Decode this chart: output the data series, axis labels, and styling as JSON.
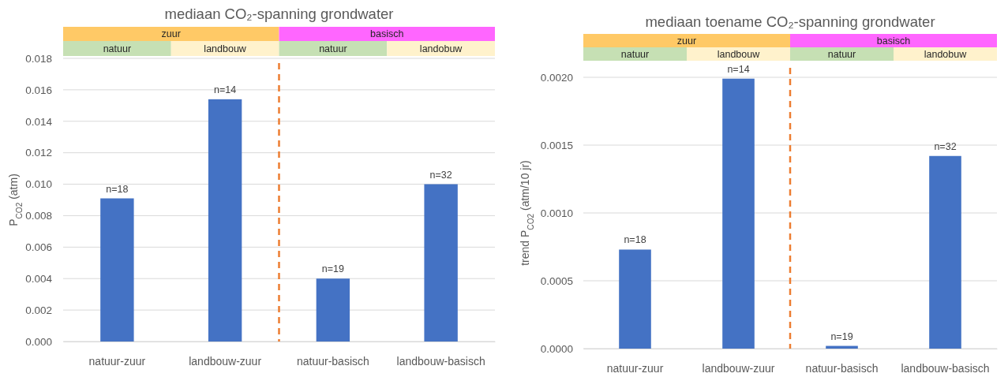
{
  "chart_data": [
    {
      "type": "bar",
      "title": "mediaan CO₂-spanning grondwater",
      "ylabel": "P$_{CO2}$ (atm)",
      "categories": [
        "natuur-zuur",
        "landbouw-zuur",
        "natuur-basisch",
        "landbouw-basisch"
      ],
      "values": [
        0.0091,
        0.0154,
        0.004,
        0.01
      ],
      "color": "#4472c4",
      "ylim": [
        0,
        0.018
      ],
      "yticks": [
        {
          "value": 0,
          "label": "0.000"
        },
        0.002,
        0.004,
        0.006,
        0.008,
        {
          "value": 0.01,
          "label": "0.010"
        },
        0.012,
        0.014,
        0.016,
        0.018
      ],
      "grid": "y",
      "annotations": [
        "zuur",
        "basisch",
        "natuur",
        "landbouw",
        "natuur",
        "landobuw",
        {
          "text": "n=18",
          "x": "natuur-zuur",
          "y": 0.0091
        },
        {
          "text": "n=14",
          "x": "landbouw-zuur",
          "y": 0.0154
        },
        {
          "text": "n=19",
          "x": "natuur-basisch",
          "y": 0.004
        },
        {
          "text": "n=32",
          "x": "landbouw-basisch",
          "y": 0.01
        }
      ]
    },
    {
      "type": "bar",
      "title": "mediaan toename CO₂-spanning grondwater",
      "ylabel": "trend P$_{CO2}$ (atm/10 jr)",
      "categories": [
        "natuur-zuur",
        "landbouw-zuur",
        "natuur-basisch",
        "landbouw-basisch"
      ],
      "values": [
        0.00073,
        0.00199,
        2e-05,
        0.00142
      ],
      "color": "#4472c4",
      "ylim": [
        0,
        0.002
      ],
      "yticks": [
        {
          "value": 0,
          "label": "0.0000"
        },
        0.0005,
        {
          "value": 0.001,
          "label": "0.0010"
        },
        0.0015,
        {
          "value": 0.002,
          "label": "0.0020"
        }
      ],
      "grid": "y",
      "annotations": [
        "zuur",
        "basisch",
        "natuur",
        "landbouw",
        "natuur",
        "landobuw",
        {
          "text": "n=18",
          "x": "natuur-zuur",
          "y": 0.00073
        },
        {
          "text": "n=14",
          "x": "landbouw-zuur",
          "y": 0.00199
        },
        {
          "text": "n=19",
          "x": "natuur-basisch",
          "y": 2e-05
        },
        {
          "text": "n=32",
          "x": "landbouw-basisch",
          "y": 0.00142
        }
      ]
    }
  ]
}
